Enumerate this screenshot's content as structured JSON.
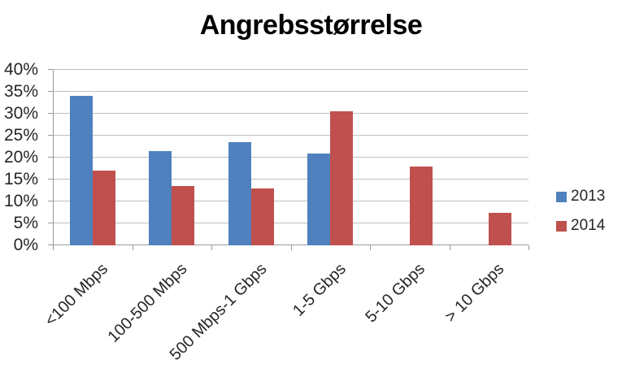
{
  "title": "Angrebsstørrelse",
  "colors": {
    "background": "#ffffff",
    "grid": "#bfbfbf",
    "axis": "#9a9a9a",
    "text": "#262626",
    "title": "#000000",
    "series_2013": "#4E81BD",
    "series_2014": "#C0504D"
  },
  "legend": {
    "position": "right",
    "items": [
      {
        "label": "2013",
        "color": "#4E81BD"
      },
      {
        "label": "2014",
        "color": "#C0504D"
      }
    ]
  },
  "chart_data": {
    "type": "bar",
    "title": "Angrebsstørrelse",
    "xlabel": "",
    "ylabel": "",
    "categories": [
      "<100 Mbps",
      "100-500 Mbps",
      "500 Mbps-1 Gbps",
      "1-5 Gbps",
      "5-10 Gbps",
      "> 10 Gbps"
    ],
    "series": [
      {
        "name": "2013",
        "color": "#4E81BD",
        "values": [
          34,
          21.5,
          23.5,
          21,
          0,
          0
        ]
      },
      {
        "name": "2014",
        "color": "#C0504D",
        "values": [
          17,
          13.5,
          13,
          30.5,
          18,
          7.5
        ]
      }
    ],
    "ylim": [
      0,
      40
    ],
    "ytick_step": 5,
    "ytick_labels": [
      "0%",
      "5%",
      "10%",
      "15%",
      "20%",
      "25%",
      "30%",
      "35%",
      "40%"
    ],
    "grid": true,
    "legend_position": "right"
  }
}
